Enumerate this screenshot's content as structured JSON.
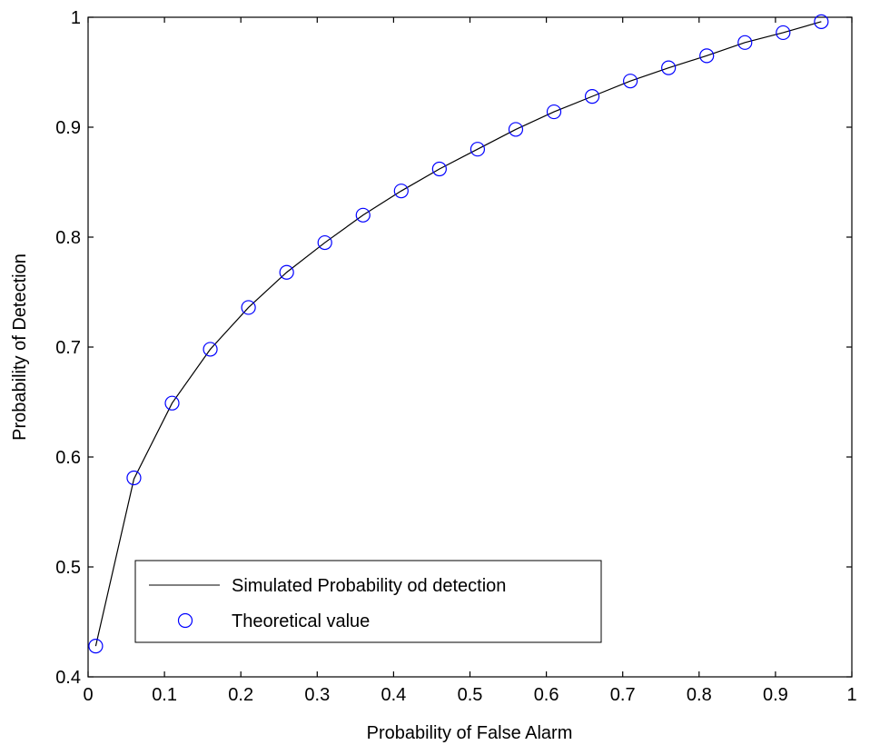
{
  "chart_data": {
    "type": "line",
    "title": "",
    "xlabel": "Probability of False Alarm",
    "ylabel": "Probability of Detection",
    "xlim": [
      0,
      1
    ],
    "ylim": [
      0.4,
      1
    ],
    "grid": false,
    "legend_position": "bottom-left",
    "x_ticks": [
      "0",
      "0.1",
      "0.2",
      "0.3",
      "0.4",
      "0.5",
      "0.6",
      "0.7",
      "0.8",
      "0.9",
      "1"
    ],
    "y_ticks": [
      "0.4",
      "0.5",
      "0.6",
      "0.7",
      "0.8",
      "0.9",
      "1"
    ],
    "x": [
      0.01,
      0.06,
      0.11,
      0.16,
      0.21,
      0.26,
      0.31,
      0.36,
      0.41,
      0.46,
      0.51,
      0.56,
      0.61,
      0.66,
      0.71,
      0.76,
      0.81,
      0.86,
      0.91,
      0.96
    ],
    "series": [
      {
        "name": "Simulated Probability od detection",
        "style": "line",
        "color": "#000000",
        "values": [
          0.428,
          0.58,
          0.649,
          0.698,
          0.736,
          0.768,
          0.795,
          0.82,
          0.842,
          0.862,
          0.88,
          0.898,
          0.914,
          0.928,
          0.942,
          0.954,
          0.965,
          0.977,
          0.986,
          0.996
        ]
      },
      {
        "name": "Theoretical value",
        "style": "marker-circle",
        "color": "#0000ff",
        "values": [
          0.428,
          0.581,
          0.649,
          0.698,
          0.736,
          0.768,
          0.795,
          0.82,
          0.842,
          0.862,
          0.88,
          0.898,
          0.914,
          0.928,
          0.942,
          0.954,
          0.965,
          0.977,
          0.986,
          0.996
        ]
      }
    ]
  }
}
